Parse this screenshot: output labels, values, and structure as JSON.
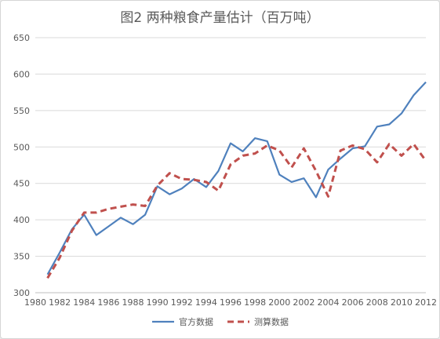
{
  "chart_data": {
    "type": "line",
    "title": "图2 两种粮食产量估计（百万吨）",
    "xlabel": "",
    "ylabel": "",
    "xlim": [
      1980,
      2012
    ],
    "ylim": [
      300,
      650
    ],
    "x_ticks": [
      "1980",
      "1982",
      "1984",
      "1986",
      "1988",
      "1990",
      "1992",
      "1994",
      "1996",
      "1998",
      "2000",
      "2002",
      "2004",
      "2006",
      "2008",
      "2010",
      "2012"
    ],
    "y_ticks": [
      "300",
      "350",
      "400",
      "450",
      "500",
      "550",
      "600",
      "650"
    ],
    "grid": "horizontal",
    "legend_position": "bottom",
    "series": [
      {
        "name": "官方数据",
        "style": "solid",
        "color": "#4f81bd",
        "x": [
          1981,
          1982,
          1983,
          1984,
          1985,
          1986,
          1987,
          1988,
          1989,
          1990,
          1991,
          1992,
          1993,
          1994,
          1995,
          1996,
          1997,
          1998,
          1999,
          2000,
          2001,
          2002,
          2003,
          2004,
          2005,
          2006,
          2007,
          2008,
          2009,
          2010,
          2011,
          2012
        ],
        "values": [
          325,
          355,
          387,
          407,
          379,
          391,
          403,
          394,
          407,
          446,
          435,
          443,
          456,
          445,
          467,
          505,
          494,
          512,
          508,
          462,
          452,
          457,
          431,
          469,
          484,
          498,
          501,
          528,
          531,
          546,
          571,
          589
        ]
      },
      {
        "name": "测算数据",
        "style": "dashed",
        "color": "#c0504d",
        "x": [
          1981,
          1982,
          1983,
          1984,
          1985,
          1986,
          1987,
          1988,
          1989,
          1990,
          1991,
          1992,
          1993,
          1994,
          1995,
          1996,
          1997,
          1998,
          1999,
          2000,
          2001,
          2002,
          2003,
          2004,
          2005,
          2006,
          2007,
          2008,
          2009,
          2010,
          2011,
          2012
        ],
        "values": [
          320,
          348,
          385,
          410,
          410,
          415,
          418,
          421,
          419,
          447,
          464,
          456,
          455,
          452,
          440,
          476,
          488,
          491,
          502,
          495,
          472,
          498,
          467,
          432,
          495,
          502,
          497,
          479,
          504,
          488,
          504,
          481
        ]
      }
    ]
  }
}
